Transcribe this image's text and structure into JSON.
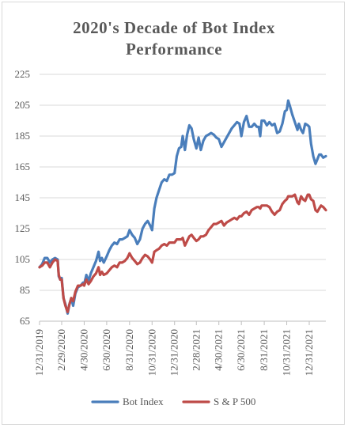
{
  "chart_data": {
    "type": "line",
    "title_line1": "2020's Decade of Bot Index",
    "title_line2": "Performance",
    "ylim": [
      65,
      225
    ],
    "yticks": [
      65,
      85,
      105,
      125,
      145,
      165,
      185,
      205,
      225
    ],
    "xticks": [
      "12/31/2019",
      "2/29/2020",
      "4/30/2020",
      "6/30/2020",
      "8/31/2020",
      "10/31/2020",
      "12/31/2020",
      "2/28/2021",
      "4/30/2021",
      "6/30/2021",
      "8/31/2021",
      "10/31/2021",
      "12/31/2021"
    ],
    "grid": true,
    "legend_position": "bottom",
    "series": [
      {
        "name": "Bot Index",
        "color": "#4a7ebb",
        "points": [
          [
            "2019-12-31",
            100
          ],
          [
            "2020-01-07",
            102
          ],
          [
            "2020-01-14",
            106
          ],
          [
            "2020-01-21",
            106
          ],
          [
            "2020-01-28",
            103
          ],
          [
            "2020-02-04",
            105
          ],
          [
            "2020-02-11",
            106
          ],
          [
            "2020-02-18",
            105
          ],
          [
            "2020-02-21",
            94
          ],
          [
            "2020-02-25",
            92
          ],
          [
            "2020-02-29",
            93
          ],
          [
            "2020-03-05",
            80
          ],
          [
            "2020-03-10",
            76
          ],
          [
            "2020-03-16",
            70
          ],
          [
            "2020-03-21",
            76
          ],
          [
            "2020-03-26",
            80
          ],
          [
            "2020-03-31",
            75
          ],
          [
            "2020-04-06",
            83
          ],
          [
            "2020-04-13",
            87
          ],
          [
            "2020-04-20",
            88
          ],
          [
            "2020-04-27",
            90
          ],
          [
            "2020-04-30",
            89
          ],
          [
            "2020-05-06",
            95
          ],
          [
            "2020-05-12",
            91
          ],
          [
            "2020-05-18",
            96
          ],
          [
            "2020-05-25",
            100
          ],
          [
            "2020-06-01",
            104
          ],
          [
            "2020-06-08",
            110
          ],
          [
            "2020-06-12",
            104
          ],
          [
            "2020-06-17",
            106
          ],
          [
            "2020-06-22",
            103
          ],
          [
            "2020-06-30",
            107
          ],
          [
            "2020-07-07",
            111
          ],
          [
            "2020-07-14",
            114
          ],
          [
            "2020-07-21",
            116
          ],
          [
            "2020-07-28",
            115
          ],
          [
            "2020-08-04",
            118
          ],
          [
            "2020-08-11",
            118
          ],
          [
            "2020-08-18",
            119
          ],
          [
            "2020-08-25",
            120
          ],
          [
            "2020-08-31",
            124
          ],
          [
            "2020-09-07",
            121
          ],
          [
            "2020-09-14",
            119
          ],
          [
            "2020-09-21",
            115
          ],
          [
            "2020-09-28",
            118
          ],
          [
            "2020-10-05",
            125
          ],
          [
            "2020-10-12",
            128
          ],
          [
            "2020-10-19",
            130
          ],
          [
            "2020-10-26",
            127
          ],
          [
            "2020-10-31",
            124
          ],
          [
            "2020-11-06",
            138
          ],
          [
            "2020-11-12",
            145
          ],
          [
            "2020-11-19",
            150
          ],
          [
            "2020-11-26",
            155
          ],
          [
            "2020-12-03",
            157
          ],
          [
            "2020-12-10",
            156
          ],
          [
            "2020-12-17",
            160
          ],
          [
            "2020-12-24",
            160
          ],
          [
            "2020-12-31",
            161
          ],
          [
            "2021-01-06",
            172
          ],
          [
            "2021-01-12",
            177
          ],
          [
            "2021-01-18",
            178
          ],
          [
            "2021-01-22",
            185
          ],
          [
            "2021-01-28",
            176
          ],
          [
            "2021-02-03",
            186
          ],
          [
            "2021-02-09",
            192
          ],
          [
            "2021-02-15",
            190
          ],
          [
            "2021-02-21",
            183
          ],
          [
            "2021-02-28",
            177
          ],
          [
            "2021-03-06",
            184
          ],
          [
            "2021-03-12",
            176
          ],
          [
            "2021-03-19",
            182
          ],
          [
            "2021-03-26",
            185
          ],
          [
            "2021-04-02",
            186
          ],
          [
            "2021-04-09",
            187
          ],
          [
            "2021-04-16",
            186
          ],
          [
            "2021-04-23",
            184
          ],
          [
            "2021-04-30",
            183
          ],
          [
            "2021-05-07",
            178
          ],
          [
            "2021-05-14",
            181
          ],
          [
            "2021-05-21",
            184
          ],
          [
            "2021-05-28",
            187
          ],
          [
            "2021-06-04",
            190
          ],
          [
            "2021-06-11",
            192
          ],
          [
            "2021-06-18",
            194
          ],
          [
            "2021-06-25",
            193
          ],
          [
            "2021-06-30",
            185
          ],
          [
            "2021-07-07",
            194
          ],
          [
            "2021-07-14",
            198
          ],
          [
            "2021-07-21",
            191
          ],
          [
            "2021-07-28",
            191
          ],
          [
            "2021-08-04",
            193
          ],
          [
            "2021-08-11",
            191
          ],
          [
            "2021-08-16",
            191
          ],
          [
            "2021-08-20",
            185
          ],
          [
            "2021-08-24",
            195
          ],
          [
            "2021-08-31",
            195
          ],
          [
            "2021-09-07",
            192
          ],
          [
            "2021-09-14",
            194
          ],
          [
            "2021-09-21",
            192
          ],
          [
            "2021-09-28",
            193
          ],
          [
            "2021-10-05",
            187
          ],
          [
            "2021-10-12",
            188
          ],
          [
            "2021-10-19",
            193
          ],
          [
            "2021-10-26",
            201
          ],
          [
            "2021-10-31",
            202
          ],
          [
            "2021-11-04",
            208
          ],
          [
            "2021-11-09",
            204
          ],
          [
            "2021-11-15",
            199
          ],
          [
            "2021-11-22",
            194
          ],
          [
            "2021-11-29",
            189
          ],
          [
            "2021-12-03",
            193
          ],
          [
            "2021-12-09",
            189
          ],
          [
            "2021-12-14",
            187
          ],
          [
            "2021-12-20",
            193
          ],
          [
            "2021-12-27",
            192
          ],
          [
            "2021-12-31",
            191
          ],
          [
            "2022-01-05",
            180
          ],
          [
            "2022-01-11",
            172
          ],
          [
            "2022-01-17",
            167
          ],
          [
            "2022-01-22",
            170
          ],
          [
            "2022-01-27",
            173
          ],
          [
            "2022-02-01",
            173
          ],
          [
            "2022-02-07",
            171
          ],
          [
            "2022-02-14",
            172
          ]
        ]
      },
      {
        "name": "S & P 500",
        "color": "#be4b48",
        "points": [
          [
            "2019-12-31",
            100
          ],
          [
            "2020-01-07",
            101
          ],
          [
            "2020-01-14",
            103
          ],
          [
            "2020-01-21",
            103
          ],
          [
            "2020-01-28",
            100
          ],
          [
            "2020-02-04",
            103
          ],
          [
            "2020-02-11",
            105
          ],
          [
            "2020-02-18",
            104
          ],
          [
            "2020-02-21",
            95
          ],
          [
            "2020-02-25",
            92
          ],
          [
            "2020-02-29",
            92
          ],
          [
            "2020-03-05",
            80
          ],
          [
            "2020-03-10",
            75
          ],
          [
            "2020-03-16",
            71
          ],
          [
            "2020-03-21",
            76
          ],
          [
            "2020-03-26",
            80
          ],
          [
            "2020-03-31",
            78
          ],
          [
            "2020-04-06",
            84
          ],
          [
            "2020-04-13",
            88
          ],
          [
            "2020-04-20",
            88
          ],
          [
            "2020-04-27",
            89
          ],
          [
            "2020-04-30",
            88
          ],
          [
            "2020-05-06",
            92
          ],
          [
            "2020-05-12",
            89
          ],
          [
            "2020-05-18",
            91
          ],
          [
            "2020-05-25",
            94
          ],
          [
            "2020-06-01",
            96
          ],
          [
            "2020-06-08",
            100
          ],
          [
            "2020-06-12",
            95
          ],
          [
            "2020-06-17",
            97
          ],
          [
            "2020-06-22",
            95
          ],
          [
            "2020-06-30",
            96
          ],
          [
            "2020-07-07",
            98
          ],
          [
            "2020-07-14",
            100
          ],
          [
            "2020-07-21",
            101
          ],
          [
            "2020-07-28",
            100
          ],
          [
            "2020-08-04",
            103
          ],
          [
            "2020-08-11",
            103
          ],
          [
            "2020-08-18",
            104
          ],
          [
            "2020-08-25",
            106
          ],
          [
            "2020-08-31",
            109
          ],
          [
            "2020-09-07",
            106
          ],
          [
            "2020-09-14",
            104
          ],
          [
            "2020-09-21",
            102
          ],
          [
            "2020-09-28",
            103
          ],
          [
            "2020-10-05",
            106
          ],
          [
            "2020-10-12",
            108
          ],
          [
            "2020-10-19",
            107
          ],
          [
            "2020-10-26",
            105
          ],
          [
            "2020-10-31",
            103
          ],
          [
            "2020-11-06",
            110
          ],
          [
            "2020-11-12",
            111
          ],
          [
            "2020-11-19",
            112
          ],
          [
            "2020-11-26",
            114
          ],
          [
            "2020-12-03",
            115
          ],
          [
            "2020-12-10",
            114
          ],
          [
            "2020-12-17",
            116
          ],
          [
            "2020-12-24",
            116
          ],
          [
            "2020-12-31",
            116
          ],
          [
            "2021-01-06",
            118
          ],
          [
            "2021-01-12",
            118
          ],
          [
            "2021-01-18",
            118
          ],
          [
            "2021-01-22",
            119
          ],
          [
            "2021-01-28",
            114
          ],
          [
            "2021-02-03",
            117
          ],
          [
            "2021-02-09",
            120
          ],
          [
            "2021-02-15",
            121
          ],
          [
            "2021-02-21",
            119
          ],
          [
            "2021-02-28",
            117
          ],
          [
            "2021-03-06",
            118
          ],
          [
            "2021-03-12",
            120
          ],
          [
            "2021-03-19",
            120
          ],
          [
            "2021-03-26",
            121
          ],
          [
            "2021-04-02",
            124
          ],
          [
            "2021-04-09",
            126
          ],
          [
            "2021-04-16",
            128
          ],
          [
            "2021-04-23",
            128
          ],
          [
            "2021-04-30",
            129
          ],
          [
            "2021-05-07",
            130
          ],
          [
            "2021-05-14",
            127
          ],
          [
            "2021-05-21",
            129
          ],
          [
            "2021-05-28",
            130
          ],
          [
            "2021-06-04",
            131
          ],
          [
            "2021-06-11",
            132
          ],
          [
            "2021-06-18",
            131
          ],
          [
            "2021-06-25",
            133
          ],
          [
            "2021-06-30",
            133
          ],
          [
            "2021-07-07",
            135
          ],
          [
            "2021-07-14",
            136
          ],
          [
            "2021-07-21",
            134
          ],
          [
            "2021-07-28",
            137
          ],
          [
            "2021-08-04",
            138
          ],
          [
            "2021-08-11",
            139
          ],
          [
            "2021-08-16",
            139
          ],
          [
            "2021-08-20",
            138
          ],
          [
            "2021-08-24",
            140
          ],
          [
            "2021-08-31",
            140
          ],
          [
            "2021-09-07",
            140
          ],
          [
            "2021-09-14",
            139
          ],
          [
            "2021-09-21",
            136
          ],
          [
            "2021-09-28",
            134
          ],
          [
            "2021-10-05",
            136
          ],
          [
            "2021-10-12",
            137
          ],
          [
            "2021-10-19",
            141
          ],
          [
            "2021-10-26",
            143
          ],
          [
            "2021-10-31",
            144
          ],
          [
            "2021-11-04",
            146
          ],
          [
            "2021-11-09",
            146
          ],
          [
            "2021-11-15",
            146
          ],
          [
            "2021-11-22",
            147
          ],
          [
            "2021-11-29",
            142
          ],
          [
            "2021-12-03",
            141
          ],
          [
            "2021-12-09",
            146
          ],
          [
            "2021-12-14",
            144
          ],
          [
            "2021-12-20",
            143
          ],
          [
            "2021-12-27",
            147
          ],
          [
            "2021-12-31",
            147
          ],
          [
            "2022-01-05",
            144
          ],
          [
            "2022-01-11",
            143
          ],
          [
            "2022-01-17",
            137
          ],
          [
            "2022-01-22",
            136
          ],
          [
            "2022-01-27",
            138
          ],
          [
            "2022-02-01",
            140
          ],
          [
            "2022-02-07",
            139
          ],
          [
            "2022-02-14",
            137
          ]
        ]
      }
    ]
  }
}
